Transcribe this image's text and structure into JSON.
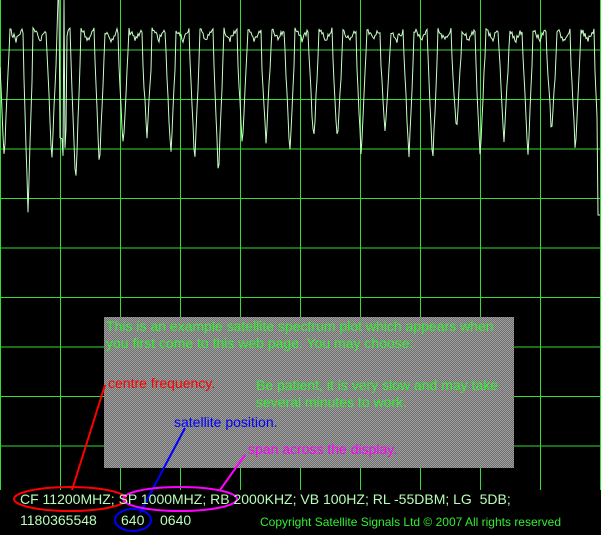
{
  "note": {
    "intro": "This is an example satellite spectrum plot which appears when you first come to this web page.  You may choose:",
    "centre": "centre frequency.",
    "patience": "Be patient, it is very slow and may take several minutes to work.",
    "position": "satellite position.",
    "span": "span across the display."
  },
  "status": {
    "line1": {
      "cf": "CF 11200MHZ;",
      "sp": "SP 1000MHZ;",
      "rest": "RB 2000KHZ; VB 100HZ; RL -55DBM; LG  5DB;"
    },
    "line2": {
      "id": "1180365548",
      "position": "640",
      "code": "0640"
    },
    "copyright": "Copyright Satellite Signals Ltd © 2007 All rights reserved"
  }
}
